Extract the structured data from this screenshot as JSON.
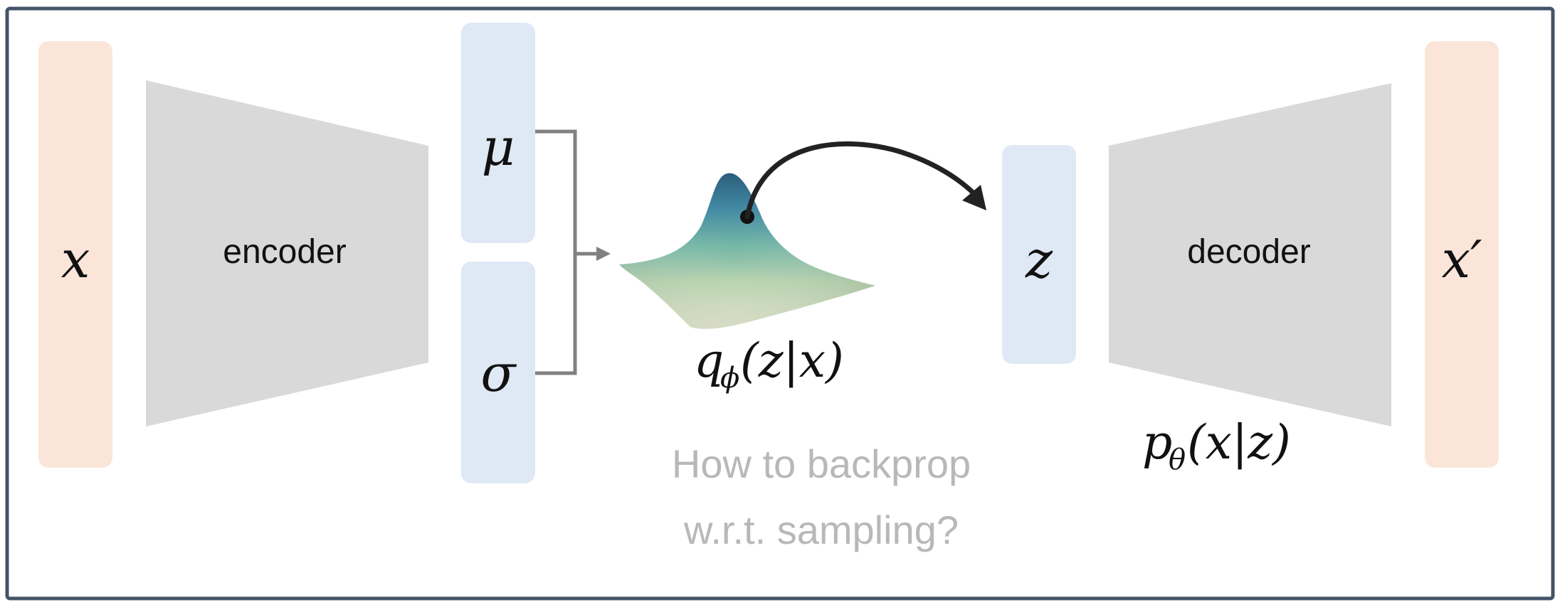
{
  "input": {
    "symbol": "x"
  },
  "encoder": {
    "label": "encoder"
  },
  "latent_params": {
    "mu": "μ",
    "sigma": "σ"
  },
  "distribution": {
    "label_q": "q",
    "label_sub": "ϕ",
    "label_args": "(z|x)"
  },
  "latent_sample": {
    "symbol": "z"
  },
  "decoder": {
    "label": "decoder",
    "label_p": "p",
    "label_sub": "θ",
    "label_args": "(x|z)"
  },
  "output": {
    "symbol": "x′"
  },
  "question": {
    "line1": "How to backprop",
    "line2": "w.r.t. sampling?"
  },
  "colors": {
    "input_block": "#fbe5d9",
    "latent_block": "#dfe9f5",
    "trapezoid": "#d9d9d9",
    "frame_border": "#44546a",
    "connector": "#808080",
    "arrow": "#222222",
    "question_text": "#b8b8b8",
    "gaussian_peak": "#1a5f8a",
    "gaussian_mid": "#5fa9a6",
    "gaussian_base": "#d6dfc4"
  }
}
